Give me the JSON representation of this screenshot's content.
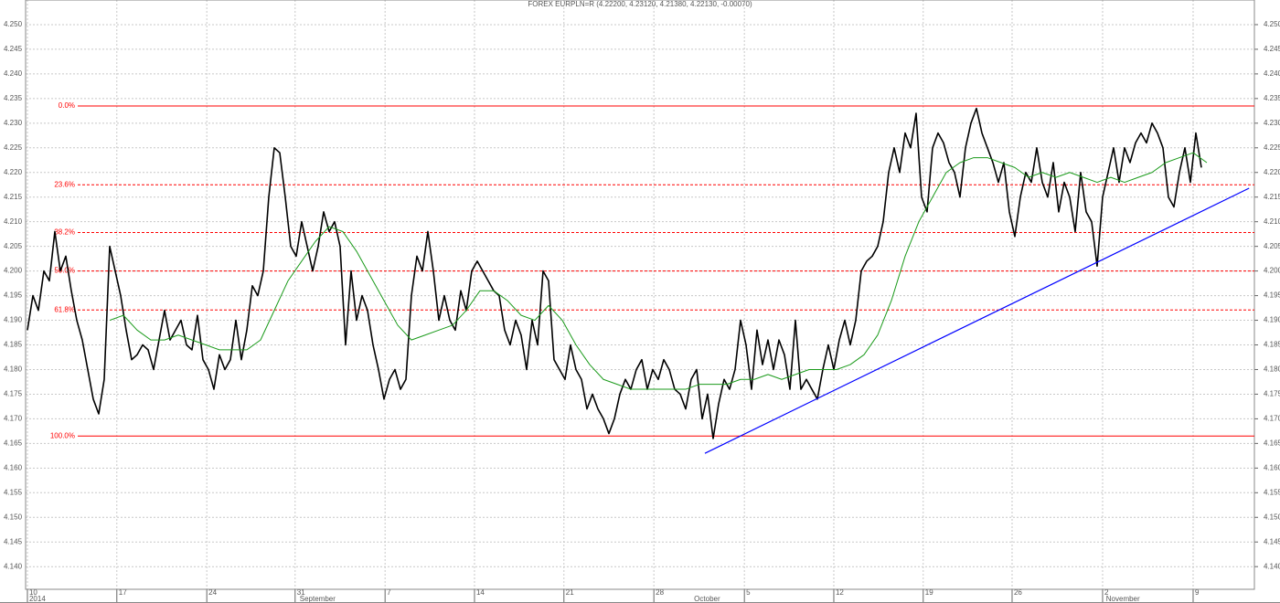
{
  "chart_data": {
    "type": "line",
    "title": "FOREX EURPLN=R (4.22200, 4.23120, 4.21380, 4.22130, -0.00070)",
    "xlim": [
      -0.33,
      223.67
    ],
    "xticks": [
      {
        "value": 0,
        "label": "10"
      },
      {
        "value": 16.3,
        "label": "17"
      },
      {
        "value": 32.7,
        "label": "24"
      },
      {
        "value": 48.8,
        "label": "31"
      },
      {
        "value": 65.2,
        "label": "7"
      },
      {
        "value": 81.5,
        "label": "14"
      },
      {
        "value": 97.8,
        "label": "21"
      },
      {
        "value": 114.2,
        "label": "28"
      },
      {
        "value": 130.7,
        "label": "5"
      },
      {
        "value": 147,
        "label": "12"
      },
      {
        "value": 163.3,
        "label": "19"
      },
      {
        "value": 179.5,
        "label": "26"
      },
      {
        "value": 196,
        "label": "2"
      },
      {
        "value": 212.5,
        "label": "9"
      }
    ],
    "month_labels": [
      {
        "value": 0,
        "label": "2014"
      },
      {
        "value": 49.3,
        "label": "September"
      },
      {
        "value": 121.2,
        "label": "October"
      },
      {
        "value": 196.3,
        "label": "November"
      }
    ],
    "ylim": [
      4.1354,
      4.255
    ],
    "yticks": [
      {
        "value": 4.14,
        "label": "4.140"
      },
      {
        "value": 4.145,
        "label": "4.145"
      },
      {
        "value": 4.15,
        "label": "4.150"
      },
      {
        "value": 4.155,
        "label": "4.155"
      },
      {
        "value": 4.16,
        "label": "4.160"
      },
      {
        "value": 4.165,
        "label": "4.165"
      },
      {
        "value": 4.17,
        "label": "4.170"
      },
      {
        "value": 4.175,
        "label": "4.175"
      },
      {
        "value": 4.18,
        "label": "4.180"
      },
      {
        "value": 4.185,
        "label": "4.185"
      },
      {
        "value": 4.19,
        "label": "4.190"
      },
      {
        "value": 4.195,
        "label": "4.195"
      },
      {
        "value": 4.2,
        "label": "4.200"
      },
      {
        "value": 4.205,
        "label": "4.205"
      },
      {
        "value": 4.21,
        "label": "4.210"
      },
      {
        "value": 4.215,
        "label": "4.215"
      },
      {
        "value": 4.22,
        "label": "4.220"
      },
      {
        "value": 4.225,
        "label": "4.225"
      },
      {
        "value": 4.23,
        "label": "4.230"
      },
      {
        "value": 4.235,
        "label": "4.235"
      },
      {
        "value": 4.24,
        "label": "4.240"
      },
      {
        "value": 4.245,
        "label": "4.245"
      },
      {
        "value": 4.25,
        "label": "4.250"
      }
    ],
    "grid": true,
    "series": [
      {
        "color": "#000000",
        "values": [
          4.188,
          4.195,
          4.192,
          4.2,
          4.198,
          4.208,
          4.2,
          4.203,
          4.196,
          4.19,
          4.186,
          4.18,
          4.174,
          4.171,
          4.178,
          4.205,
          4.2,
          4.195,
          4.188,
          4.182,
          4.183,
          4.185,
          4.184,
          4.18,
          4.186,
          4.192,
          4.186,
          4.188,
          4.19,
          4.185,
          4.184,
          4.191,
          4.182,
          4.18,
          4.176,
          4.183,
          4.18,
          4.182,
          4.19,
          4.182,
          4.188,
          4.197,
          4.195,
          4.2,
          4.215,
          4.225,
          4.224,
          4.215,
          4.205,
          4.203,
          4.21,
          4.205,
          4.2,
          4.205,
          4.212,
          4.208,
          4.21,
          4.205,
          4.185,
          4.2,
          4.19,
          4.195,
          4.192,
          4.185,
          4.18,
          4.174,
          4.178,
          4.18,
          4.176,
          4.178,
          4.195,
          4.203,
          4.2,
          4.208,
          4.2,
          4.19,
          4.195,
          4.19,
          4.188,
          4.196,
          4.192,
          4.2,
          4.202,
          4.2,
          4.198,
          4.196,
          4.195,
          4.188,
          4.185,
          4.19,
          4.187,
          4.18,
          4.19,
          4.185,
          4.2,
          4.198,
          4.182,
          4.18,
          4.178,
          4.185,
          4.18,
          4.178,
          4.172,
          4.175,
          4.172,
          4.17,
          4.167,
          4.17,
          4.175,
          4.178,
          4.176,
          4.18,
          4.182,
          4.176,
          4.18,
          4.178,
          4.182,
          4.18,
          4.176,
          4.175,
          4.172,
          4.178,
          4.18,
          4.17,
          4.175,
          4.166,
          4.173,
          4.178,
          4.176,
          4.18,
          4.19,
          4.185,
          4.176,
          4.188,
          4.181,
          4.186,
          4.18,
          4.186,
          4.183,
          4.176,
          4.19,
          4.176,
          4.178,
          4.176,
          4.174,
          4.18,
          4.185,
          4.18,
          4.186,
          4.19,
          4.185,
          4.19,
          4.2,
          4.202,
          4.203,
          4.205,
          4.21,
          4.22,
          4.225,
          4.22,
          4.228,
          4.225,
          4.232,
          4.215,
          4.212,
          4.225,
          4.228,
          4.226,
          4.222,
          4.22,
          4.215,
          4.225,
          4.23,
          4.233,
          4.228,
          4.225,
          4.222,
          4.218,
          4.222,
          4.212,
          4.207,
          4.215,
          4.22,
          4.218,
          4.225,
          4.218,
          4.215,
          4.222,
          4.212,
          4.218,
          4.215,
          4.208,
          4.22,
          4.212,
          4.21,
          4.201,
          4.215,
          4.22,
          4.225,
          4.218,
          4.225,
          4.222,
          4.226,
          4.228,
          4.226,
          4.23,
          4.228,
          4.225,
          4.215,
          4.213,
          4.22,
          4.225,
          4.218,
          4.228,
          4.221
        ]
      },
      {
        "color": "#1a9a1a",
        "x": [
          15,
          17.5,
          20,
          22.5,
          25,
          27.5,
          30,
          32.5,
          35,
          37.5,
          40,
          42.5,
          45,
          47.5,
          50,
          52.5,
          55,
          57.5,
          60,
          62.5,
          65,
          67.5,
          70,
          72.5,
          75,
          77.5,
          80,
          82.5,
          85,
          87.5,
          90,
          92.5,
          95,
          97.5,
          100,
          102.5,
          105,
          107.5,
          110,
          112.5,
          115,
          117.5,
          120,
          122.5,
          125,
          127.5,
          130,
          132.5,
          135,
          137.5,
          140,
          142.5,
          145,
          147.5,
          150,
          152.5,
          155,
          157.5,
          160,
          162.5,
          165,
          167.5,
          170,
          172.5,
          175,
          177.5,
          180,
          182.5,
          185,
          187.5,
          190,
          192.5,
          195,
          197.5,
          200,
          202.5,
          205,
          207.5,
          210,
          212.5,
          215
        ],
        "values": [
          4.19,
          4.191,
          4.188,
          4.186,
          4.186,
          4.187,
          4.186,
          4.185,
          4.184,
          4.184,
          4.184,
          4.186,
          4.192,
          4.198,
          4.202,
          4.206,
          4.209,
          4.208,
          4.204,
          4.199,
          4.194,
          4.189,
          4.186,
          4.187,
          4.188,
          4.189,
          4.192,
          4.196,
          4.196,
          4.194,
          4.191,
          4.19,
          4.193,
          4.19,
          4.185,
          4.181,
          4.178,
          4.177,
          4.176,
          4.176,
          4.176,
          4.176,
          4.176,
          4.177,
          4.177,
          4.177,
          4.178,
          4.178,
          4.179,
          4.178,
          4.179,
          4.18,
          4.18,
          4.18,
          4.181,
          4.183,
          4.187,
          4.194,
          4.203,
          4.21,
          4.215,
          4.22,
          4.222,
          4.223,
          4.223,
          4.222,
          4.221,
          4.219,
          4.22,
          4.219,
          4.22,
          4.219,
          4.218,
          4.219,
          4.218,
          4.219,
          4.22,
          4.222,
          4.223,
          4.224,
          4.222
        ]
      }
    ],
    "fibonacci": [
      {
        "label": "0.0%",
        "value": 4.2335,
        "dashed": false
      },
      {
        "label": "23.6%",
        "value": 4.2175,
        "dashed": true
      },
      {
        "label": "38.2%",
        "value": 4.2078,
        "dashed": true
      },
      {
        "label": "50.0%",
        "value": 4.2,
        "dashed": true
      },
      {
        "label": "61.8%",
        "value": 4.1921,
        "dashed": true
      },
      {
        "label": "100.0%",
        "value": 4.1665,
        "dashed": false
      }
    ],
    "fibonacci_color": "#ff0000",
    "trendline": {
      "color": "#0000ff",
      "x": [
        123.5,
        222.7
      ],
      "values": [
        4.163,
        4.2168
      ]
    }
  }
}
